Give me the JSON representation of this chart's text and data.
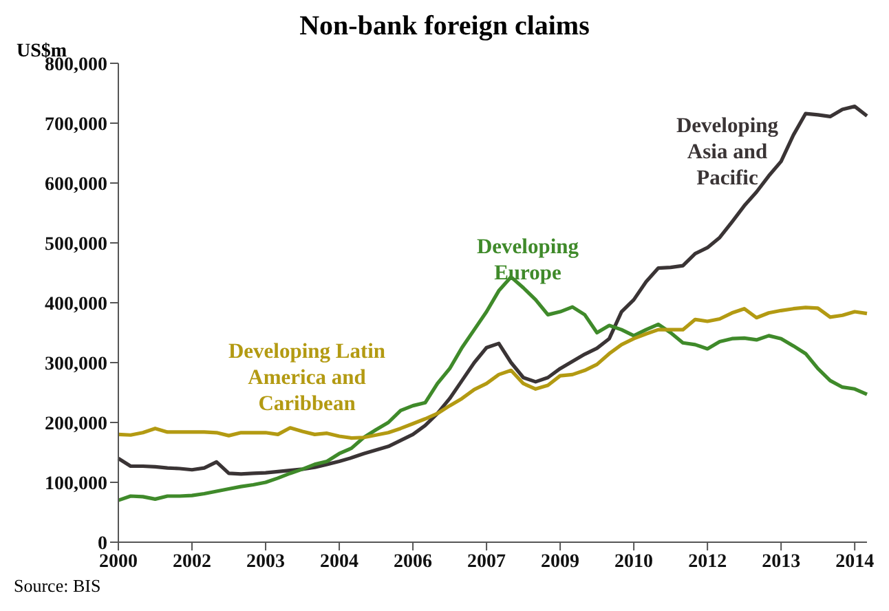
{
  "chart_data": {
    "type": "line",
    "title": "Non-bank foreign claims",
    "ylabel": "US$m",
    "annotations": [
      "Source: BIS"
    ],
    "categories": [
      "2000",
      null,
      null,
      null,
      null,
      null,
      "2002",
      null,
      null,
      null,
      null,
      null,
      "2003",
      null,
      null,
      null,
      null,
      null,
      "2004",
      null,
      null,
      null,
      null,
      null,
      "2006",
      null,
      null,
      null,
      null,
      null,
      "2007",
      null,
      null,
      null,
      null,
      null,
      "2009",
      null,
      null,
      null,
      null,
      null,
      "2010",
      null,
      null,
      null,
      null,
      null,
      "2012",
      null,
      null,
      null,
      null,
      null,
      "2013",
      null,
      null,
      null,
      null,
      null,
      "2014",
      null
    ],
    "ylim": [
      0,
      800000
    ],
    "yticks": [
      0,
      {
        "value": 100000,
        "label": "100,000"
      },
      {
        "value": 200000,
        "label": "200,000"
      },
      {
        "value": 300000,
        "label": "300,000"
      },
      {
        "value": 400000,
        "label": "400,000"
      },
      {
        "value": 500000,
        "label": "500,000"
      },
      {
        "value": 600000,
        "label": "600,000"
      },
      {
        "value": 700000,
        "label": "700,000"
      },
      {
        "value": 800000,
        "label": "800,000"
      }
    ],
    "grid": false,
    "legend": false,
    "marker": "none",
    "line_style": "solid",
    "series": [
      {
        "name": "Developing Asia and Pacific",
        "color": "#3a3435",
        "values": [
          140000,
          127000,
          127000,
          126000,
          124000,
          123000,
          121000,
          124000,
          134000,
          115000,
          114000,
          115000,
          116000,
          118000,
          120000,
          122000,
          125000,
          130000,
          135000,
          141000,
          148000,
          154000,
          160000,
          170000,
          180000,
          195000,
          215000,
          240000,
          270000,
          300000,
          325000,
          332000,
          300000,
          275000,
          268000,
          275000,
          290000,
          302000,
          314000,
          324000,
          340000,
          385000,
          405000,
          435000,
          458000,
          459000,
          462000,
          482000,
          492000,
          509000,
          535000,
          562000,
          585000,
          612000,
          636000,
          680000,
          716000,
          714000,
          711000,
          723000,
          728000,
          712000
        ]
      },
      {
        "name": "Developing Europe",
        "color": "#3f8a2a",
        "values": [
          70000,
          77000,
          76000,
          72000,
          77000,
          77000,
          78000,
          81000,
          85000,
          89000,
          93000,
          96000,
          100000,
          107000,
          115000,
          122000,
          130000,
          135000,
          148000,
          157000,
          175000,
          188000,
          200000,
          220000,
          228000,
          233000,
          265000,
          290000,
          325000,
          355000,
          385000,
          420000,
          443000,
          425000,
          405000,
          380000,
          385000,
          393000,
          380000,
          350000,
          362000,
          355000,
          345000,
          355000,
          364000,
          350000,
          333000,
          330000,
          323000,
          335000,
          340000,
          341000,
          338000,
          345000,
          340000,
          328000,
          315000,
          290000,
          270000,
          259000,
          256000,
          247000
        ]
      },
      {
        "name": "Developing Latin America and Caribbean",
        "color": "#b39a12",
        "values": [
          180000,
          179000,
          183000,
          190000,
          184000,
          184000,
          184000,
          184000,
          183000,
          178000,
          183000,
          183000,
          183000,
          180000,
          191000,
          185000,
          180000,
          182000,
          177000,
          174000,
          175000,
          179000,
          183000,
          190000,
          198000,
          206000,
          215000,
          228000,
          240000,
          255000,
          265000,
          280000,
          287000,
          265000,
          256000,
          262000,
          278000,
          280000,
          287000,
          297000,
          315000,
          330000,
          340000,
          348000,
          355000,
          355000,
          355000,
          372000,
          369000,
          373000,
          383000,
          390000,
          375000,
          383000,
          387000,
          390000,
          392000,
          391000,
          376000,
          379000,
          385000,
          382000
        ]
      }
    ]
  }
}
